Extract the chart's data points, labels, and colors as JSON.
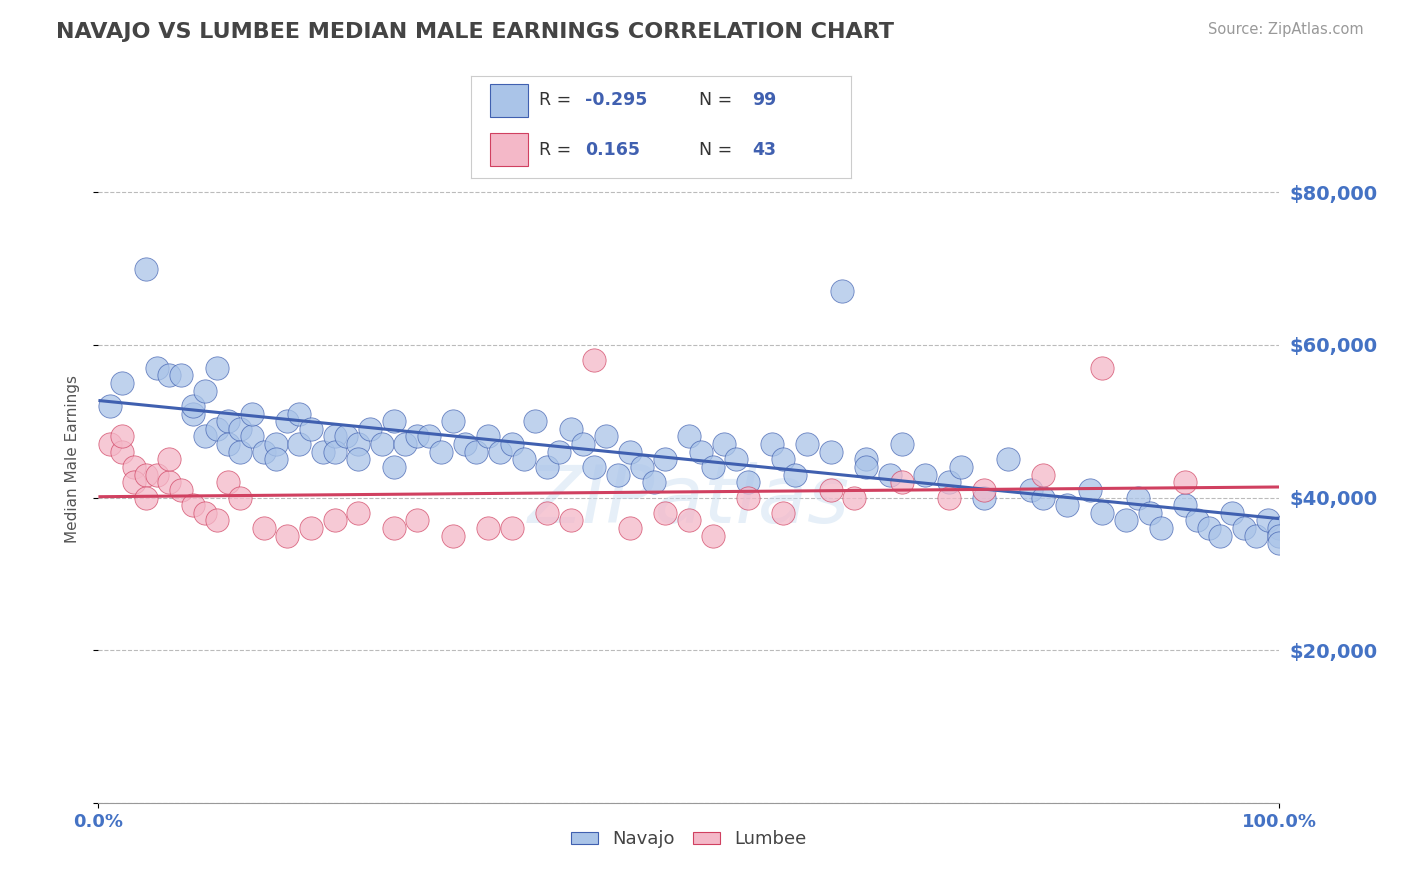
{
  "title": "NAVAJO VS LUMBEE MEDIAN MALE EARNINGS CORRELATION CHART",
  "source_text": "Source: ZipAtlas.com",
  "ylabel": "Median Male Earnings",
  "watermark": "ZIPatlas",
  "navajo_R": -0.295,
  "navajo_N": 99,
  "lumbee_R": 0.165,
  "lumbee_N": 43,
  "navajo_color": "#aac4e8",
  "lumbee_color": "#f4b8c8",
  "navajo_line_color": "#4060b0",
  "lumbee_line_color": "#d04060",
  "title_color": "#444444",
  "tick_color": "#4472c4",
  "grid_color": "#bbbbbb",
  "background_color": "#ffffff",
  "xlim": [
    0,
    1
  ],
  "ylim": [
    0,
    90000
  ],
  "yticks": [
    0,
    20000,
    40000,
    60000,
    80000
  ],
  "ytick_labels": [
    "",
    "$20,000",
    "$40,000",
    "$60,000",
    "$80,000"
  ],
  "navajo_x": [
    0.01,
    0.02,
    0.04,
    0.05,
    0.06,
    0.07,
    0.08,
    0.08,
    0.09,
    0.09,
    0.1,
    0.1,
    0.11,
    0.11,
    0.12,
    0.12,
    0.13,
    0.13,
    0.14,
    0.15,
    0.15,
    0.16,
    0.17,
    0.17,
    0.18,
    0.19,
    0.2,
    0.2,
    0.21,
    0.22,
    0.22,
    0.23,
    0.24,
    0.25,
    0.25,
    0.26,
    0.27,
    0.28,
    0.29,
    0.3,
    0.31,
    0.32,
    0.33,
    0.34,
    0.35,
    0.36,
    0.37,
    0.38,
    0.39,
    0.4,
    0.41,
    0.42,
    0.43,
    0.44,
    0.45,
    0.46,
    0.47,
    0.48,
    0.5,
    0.51,
    0.52,
    0.53,
    0.54,
    0.55,
    0.57,
    0.58,
    0.59,
    0.6,
    0.62,
    0.63,
    0.65,
    0.65,
    0.67,
    0.68,
    0.7,
    0.72,
    0.73,
    0.75,
    0.77,
    0.79,
    0.8,
    0.82,
    0.84,
    0.85,
    0.87,
    0.88,
    0.89,
    0.9,
    0.92,
    0.93,
    0.94,
    0.95,
    0.96,
    0.97,
    0.98,
    0.99,
    1.0,
    1.0,
    1.0
  ],
  "navajo_y": [
    52000,
    55000,
    70000,
    57000,
    56000,
    56000,
    51000,
    52000,
    54000,
    48000,
    57000,
    49000,
    50000,
    47000,
    49000,
    46000,
    48000,
    51000,
    46000,
    47000,
    45000,
    50000,
    51000,
    47000,
    49000,
    46000,
    48000,
    46000,
    48000,
    47000,
    45000,
    49000,
    47000,
    50000,
    44000,
    47000,
    48000,
    48000,
    46000,
    50000,
    47000,
    46000,
    48000,
    46000,
    47000,
    45000,
    50000,
    44000,
    46000,
    49000,
    47000,
    44000,
    48000,
    43000,
    46000,
    44000,
    42000,
    45000,
    48000,
    46000,
    44000,
    47000,
    45000,
    42000,
    47000,
    45000,
    43000,
    47000,
    46000,
    67000,
    45000,
    44000,
    43000,
    47000,
    43000,
    42000,
    44000,
    40000,
    45000,
    41000,
    40000,
    39000,
    41000,
    38000,
    37000,
    40000,
    38000,
    36000,
    39000,
    37000,
    36000,
    35000,
    38000,
    36000,
    35000,
    37000,
    36000,
    35000,
    34000
  ],
  "lumbee_x": [
    0.01,
    0.02,
    0.02,
    0.03,
    0.03,
    0.04,
    0.04,
    0.05,
    0.06,
    0.06,
    0.07,
    0.08,
    0.09,
    0.1,
    0.11,
    0.12,
    0.14,
    0.16,
    0.18,
    0.2,
    0.22,
    0.25,
    0.27,
    0.3,
    0.33,
    0.35,
    0.38,
    0.4,
    0.42,
    0.45,
    0.48,
    0.5,
    0.52,
    0.55,
    0.58,
    0.62,
    0.64,
    0.68,
    0.72,
    0.75,
    0.8,
    0.85,
    0.92
  ],
  "lumbee_y": [
    47000,
    46000,
    48000,
    44000,
    42000,
    43000,
    40000,
    43000,
    42000,
    45000,
    41000,
    39000,
    38000,
    37000,
    42000,
    40000,
    36000,
    35000,
    36000,
    37000,
    38000,
    36000,
    37000,
    35000,
    36000,
    36000,
    38000,
    37000,
    58000,
    36000,
    38000,
    37000,
    35000,
    40000,
    38000,
    41000,
    40000,
    42000,
    40000,
    41000,
    43000,
    57000,
    42000
  ]
}
